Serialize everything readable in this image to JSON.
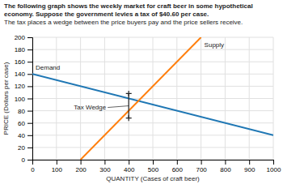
{
  "chart_data": {
    "type": "line",
    "title": "The following graph shows the weekly market for craft beer in some hypothetical economy. Suppose the government levies a tax of $40.60 per case.",
    "subtitle": "The tax places a wedge between the price buyers pay and the price sellers receive.",
    "x_label": "QUANTITY (Cases of craft beer)",
    "y_label": "PRICE (Dollars per case)",
    "series": [
      {
        "name": "Demand",
        "x": [
          0,
          1000
        ],
        "values": [
          140,
          40
        ]
      },
      {
        "name": "Supply",
        "x": [
          200,
          700
        ],
        "values": [
          0,
          200
        ]
      }
    ],
    "annotations": [
      {
        "text": "Tax Wedge",
        "x": 400,
        "y_top": 108,
        "y_bottom": 68
      }
    ],
    "xlim": [
      0,
      1000
    ],
    "ylim": [
      0,
      200
    ],
    "xticks": [
      0,
      100,
      200,
      300,
      400,
      500,
      600,
      700,
      800,
      900,
      1000
    ],
    "yticks": [
      0,
      20,
      40,
      60,
      80,
      100,
      120,
      140,
      160,
      180,
      200
    ],
    "grid": true
  }
}
